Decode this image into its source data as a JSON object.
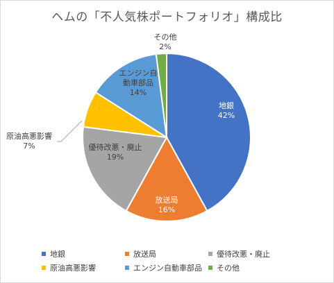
{
  "chart_data": {
    "type": "pie",
    "title": "ヘムの「不人気株ポートフォリオ」構成比",
    "categories": [
      "地銀",
      "放送局",
      "優待改悪・廃止",
      "原油高悪影響",
      "エンジン自動車部品",
      "その他"
    ],
    "values": [
      42,
      16,
      19,
      7,
      14,
      2
    ],
    "value_labels": [
      "42%",
      "16%",
      "19%",
      "7%",
      "14%",
      "2%"
    ],
    "slice_label_lines": [
      [
        "地銀"
      ],
      [
        "放送局"
      ],
      [
        "優待改悪・廃止"
      ],
      [
        "原油高悪影響"
      ],
      [
        "エンジン自",
        "動車部品"
      ],
      [
        "その他"
      ]
    ],
    "colors": [
      "#4472c4",
      "#ed7d31",
      "#a5a5a5",
      "#ffc000",
      "#5b9bd5",
      "#70ad47"
    ],
    "legend_position": "bottom",
    "start_angle": "12 o'clock, clockwise"
  }
}
